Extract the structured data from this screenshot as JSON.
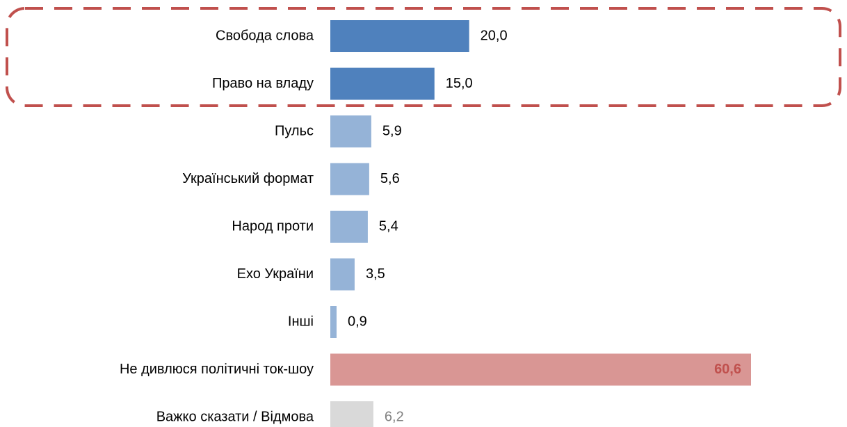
{
  "chart_data": {
    "type": "bar",
    "orientation": "horizontal",
    "categories": [
      "Свобода слова",
      "Право на владу",
      "Пульс",
      "Український формат",
      "Народ проти",
      "Ехо України",
      "Інші",
      "Не дивлюся політичні ток-шоу",
      "Важко сказати / Відмова"
    ],
    "values": [
      20.0,
      15.0,
      5.9,
      5.6,
      5.4,
      3.5,
      0.9,
      60.6,
      6.2
    ],
    "value_labels": [
      "20,0",
      "15,0",
      "5,9",
      "5,6",
      "5,4",
      "3,5",
      "0,9",
      "60,6",
      "6,2"
    ],
    "colors": [
      "#4f81bd",
      "#4f81bd",
      "#95b3d7",
      "#95b3d7",
      "#95b3d7",
      "#95b3d7",
      "#95b3d7",
      "#d99694",
      "#d9d9d9"
    ],
    "label_colors": [
      "#000000",
      "#000000",
      "#000000",
      "#000000",
      "#000000",
      "#000000",
      "#000000",
      "#c0504d",
      "#808080"
    ],
    "label_bold": [
      false,
      false,
      false,
      false,
      false,
      false,
      false,
      true,
      false
    ]
  }
}
